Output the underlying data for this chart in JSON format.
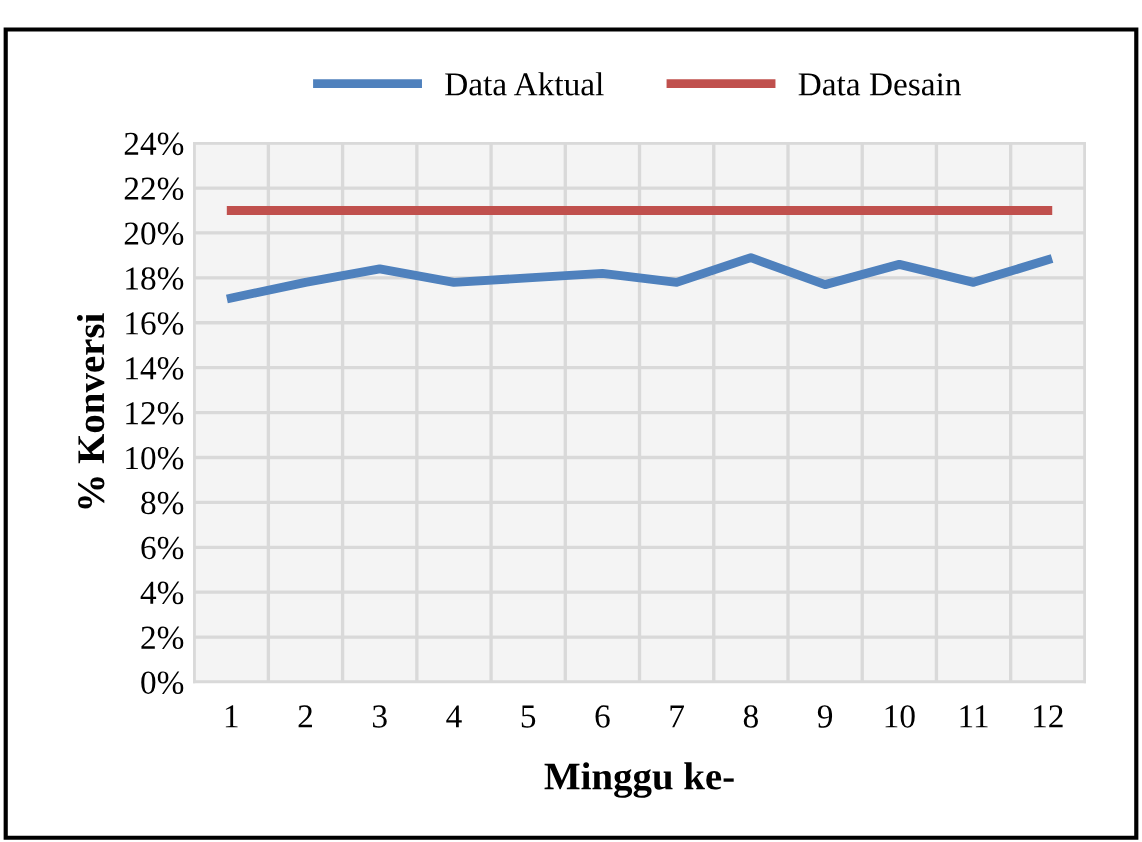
{
  "chart_data": {
    "type": "line",
    "xlabel": "Minggu ke-",
    "ylabel": "% Konversi",
    "categories": [
      "1",
      "2",
      "3",
      "4",
      "5",
      "6",
      "7",
      "8",
      "9",
      "10",
      "11",
      "12"
    ],
    "series": [
      {
        "name": "Data Aktual",
        "color": "#4f81bd",
        "values": [
          17.1,
          17.8,
          18.4,
          17.8,
          18.0,
          18.2,
          17.8,
          18.9,
          17.7,
          18.6,
          17.8,
          18.8
        ]
      },
      {
        "name": "Data Desain",
        "color": "#c0504d",
        "values": [
          21,
          21,
          21,
          21,
          21,
          21,
          21,
          21,
          21,
          21,
          21,
          21
        ]
      }
    ],
    "ylim": [
      0,
      24
    ],
    "yticks": [
      {
        "value": 0,
        "label": "0%"
      },
      {
        "value": 2,
        "label": "2%"
      },
      {
        "value": 4,
        "label": "4%"
      },
      {
        "value": 6,
        "label": "6%"
      },
      {
        "value": 8,
        "label": "8%"
      },
      {
        "value": 10,
        "label": "10%"
      },
      {
        "value": 12,
        "label": "12%"
      },
      {
        "value": 14,
        "label": "14%"
      },
      {
        "value": 16,
        "label": "16%"
      },
      {
        "value": 18,
        "label": "18%"
      },
      {
        "value": 20,
        "label": "20%"
      },
      {
        "value": 22,
        "label": "22%"
      },
      {
        "value": 24,
        "label": "24%"
      }
    ],
    "grid": true,
    "legend": "top",
    "marker": "none",
    "line_style": "solid"
  }
}
